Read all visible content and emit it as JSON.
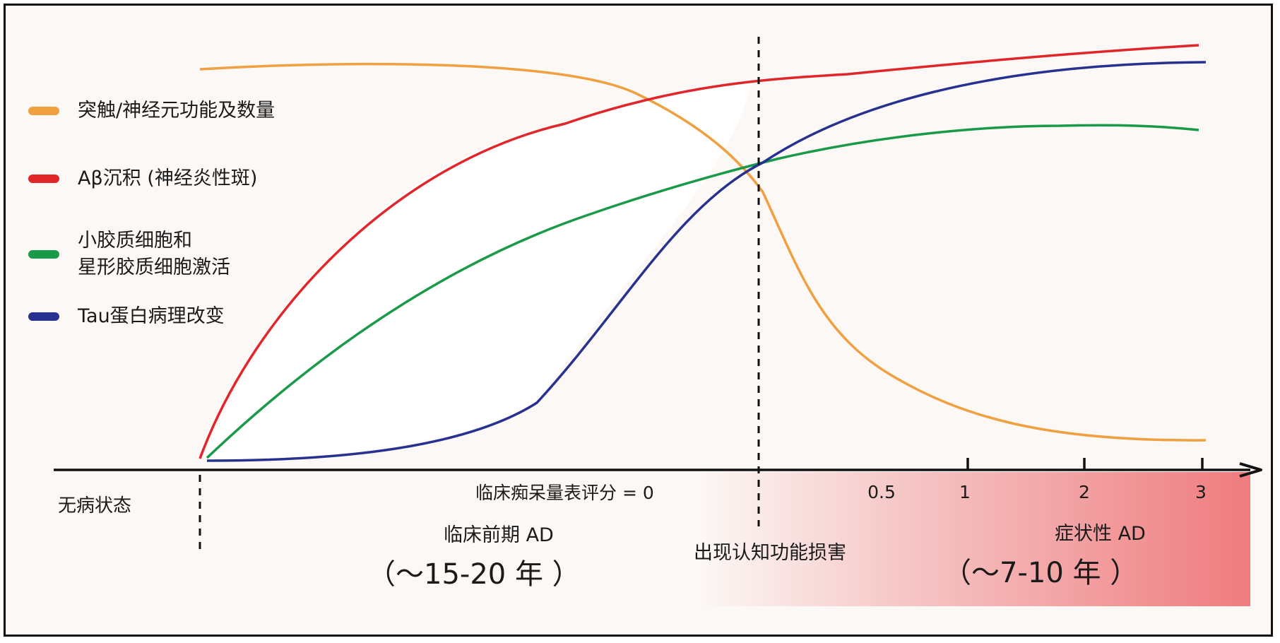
{
  "legend": [
    {
      "label": "突触/神经元功能及数量",
      "color": "#f0a040"
    },
    {
      "label": "Aβ沉积 (神经炎性斑)",
      "color": "#e0262b"
    },
    {
      "label": "小胶质细胞和\n星形胶质细胞激活",
      "color": "#1a9a48"
    },
    {
      "label": "Tau蛋白病理改变",
      "color": "#27318f"
    }
  ],
  "axis": {
    "start_label": "无病状态",
    "cdr_label": "临床痴呆量表评分 = 0",
    "ticks": [
      "0.5",
      "1",
      "2",
      "3"
    ]
  },
  "phases": {
    "preclinical": "临床前期 AD",
    "preclinical_duration": "（～15-20 年 ）",
    "transition": "出现认知功能损害",
    "symptomatic": "症状性 AD",
    "symptomatic_duration": "（～7-10 年 ）"
  },
  "colors": {
    "background": "#fcf8f5",
    "gradient_end": "#ef7b7e",
    "axis": "#111111"
  }
}
